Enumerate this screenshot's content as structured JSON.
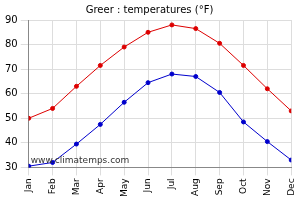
{
  "chart_data": {
    "type": "line",
    "title": "Greer : temperatures (°F)",
    "categories": [
      "Jan",
      "Feb",
      "Mar",
      "Apr",
      "May",
      "Jun",
      "Jul",
      "Aug",
      "Sep",
      "Oct",
      "Nov",
      "Dec"
    ],
    "series": [
      {
        "color": "#dd0000",
        "marker": "circle",
        "line_style": "solid",
        "values": [
          50,
          54,
          63,
          71.5,
          79,
          85,
          88,
          86.5,
          80.5,
          71.5,
          62,
          53
        ]
      },
      {
        "color": "#0000cc",
        "marker": "circle",
        "line_style": "solid",
        "values": [
          30.5,
          32,
          39.5,
          47.5,
          56.5,
          64.5,
          68,
          67,
          60.5,
          48.5,
          40.5,
          33
        ]
      }
    ],
    "ylim": [
      30,
      90
    ],
    "yticks": [
      30,
      40,
      50,
      60,
      70,
      80,
      90
    ],
    "grid": true,
    "annotations": [
      {
        "text": "www.climatemps.com"
      }
    ]
  }
}
